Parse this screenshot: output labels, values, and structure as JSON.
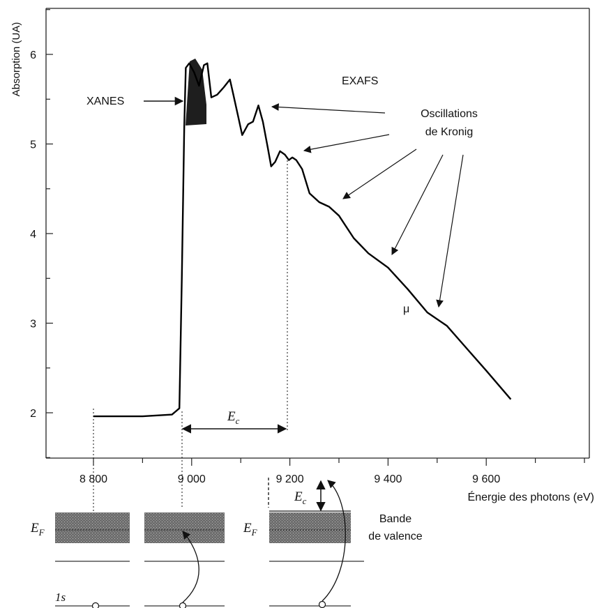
{
  "chart_data": {
    "type": "line",
    "title": "",
    "xlabel": "Énergie des photons (eV)",
    "ylabel": "Absorption (UA)",
    "xlim": [
      8700,
      9800
    ],
    "ylim": [
      1.5,
      6.5
    ],
    "x_ticks": [
      8800,
      9000,
      9200,
      9400,
      9600
    ],
    "x_tick_labels": [
      "8 800",
      "9 000",
      "9 200",
      "9 400",
      "9 600"
    ],
    "y_ticks": [
      2,
      3,
      4,
      5,
      6
    ],
    "y_tick_labels": [
      "2",
      "3",
      "4",
      "5",
      "6"
    ],
    "series": [
      {
        "name": "μ",
        "x": [
          8800,
          8900,
          8960,
          8975,
          8980,
          8985,
          8988,
          8995,
          9005,
          9015,
          9025,
          9032,
          9040,
          9052,
          9065,
          9078,
          9085,
          9095,
          9103,
          9115,
          9125,
          9136,
          9145,
          9155,
          9162,
          9170,
          9180,
          9190,
          9198,
          9205,
          9213,
          9225,
          9240,
          9260,
          9280,
          9300,
          9330,
          9360,
          9400,
          9440,
          9480,
          9520,
          9560,
          9600,
          9650
        ],
        "y": [
          1.96,
          1.96,
          1.98,
          2.05,
          3.5,
          5.2,
          5.85,
          5.9,
          5.8,
          5.65,
          5.88,
          5.9,
          5.52,
          5.55,
          5.63,
          5.72,
          5.55,
          5.3,
          5.1,
          5.22,
          5.25,
          5.43,
          5.25,
          4.96,
          4.75,
          4.8,
          4.92,
          4.88,
          4.82,
          4.85,
          4.82,
          4.72,
          4.45,
          4.35,
          4.3,
          4.2,
          3.95,
          3.78,
          3.62,
          3.38,
          3.12,
          2.97,
          2.72,
          2.47,
          2.15
        ]
      }
    ],
    "grid": false,
    "annotations": {
      "xanes": "XANES",
      "exafs": "EXAFS",
      "oscillations_line1": "Oscillations",
      "oscillations_line2": "de Kronig",
      "mu": "μ",
      "ec": "E",
      "ec_sub": "c"
    }
  },
  "levels": {
    "ef": "E",
    "ef_sub": "F",
    "ec": "E",
    "ec_sub": "c",
    "one_s": "1s",
    "band_line1": "Bande",
    "band_line2": "de valence"
  }
}
